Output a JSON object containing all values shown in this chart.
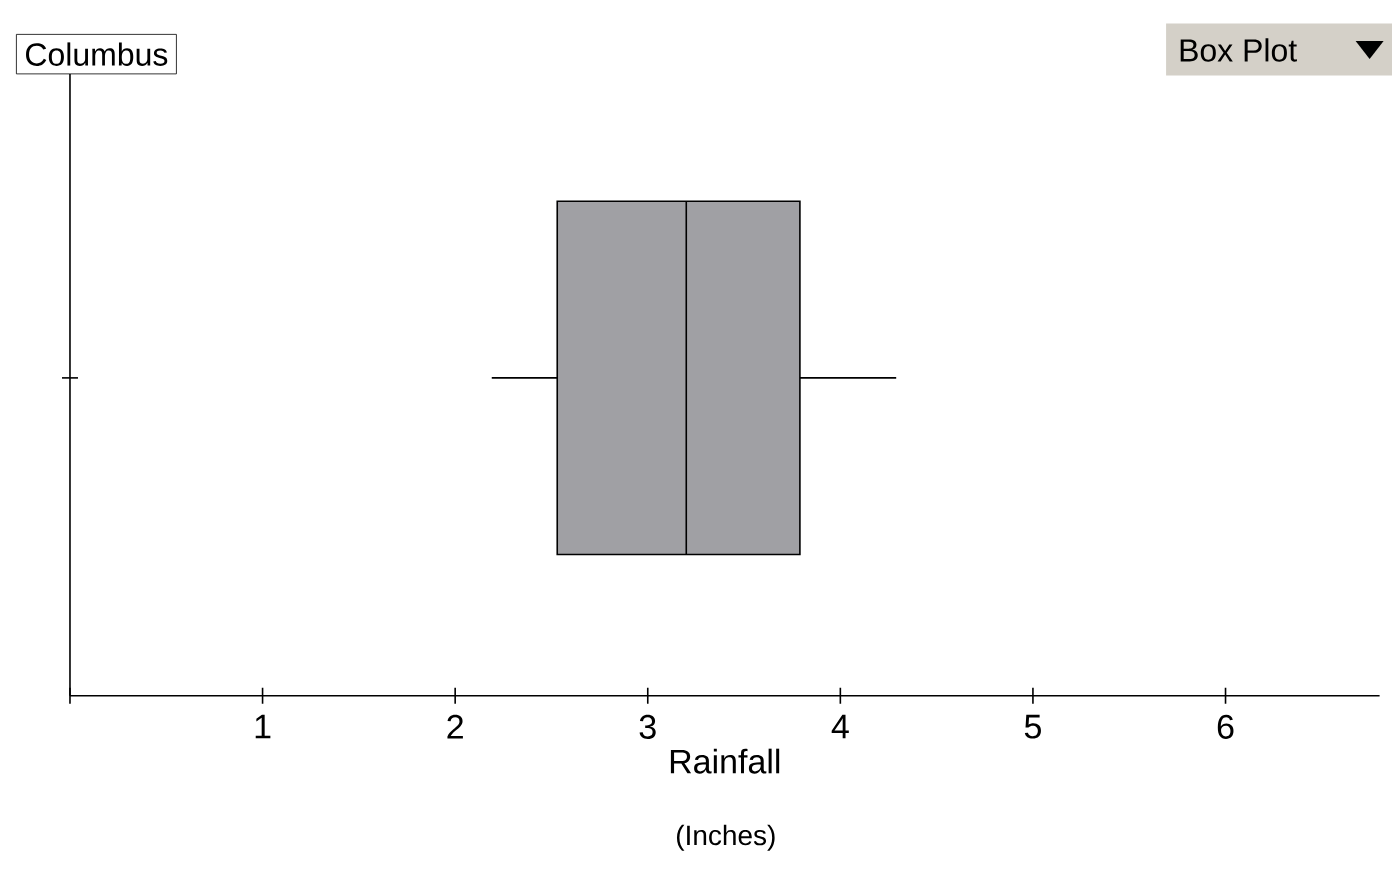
{
  "chart_data": {
    "type": "box",
    "orientation": "horizontal",
    "title": "Columbus",
    "xlabel": "Rainfall",
    "annotations": [
      "(Inches)",
      "Box Plot"
    ],
    "categories": [
      null
    ],
    "boxes": [
      {
        "low": 2.19,
        "q1": 2.53,
        "median": 3.2,
        "q3": 3.79,
        "high": 4.29
      }
    ],
    "color": "#a0a0a4",
    "xlim": [
      0,
      6.8
    ],
    "xticks": [
      {
        "value": 0,
        "label": null
      },
      1,
      2,
      3,
      4,
      5,
      6
    ],
    "grid": false
  }
}
